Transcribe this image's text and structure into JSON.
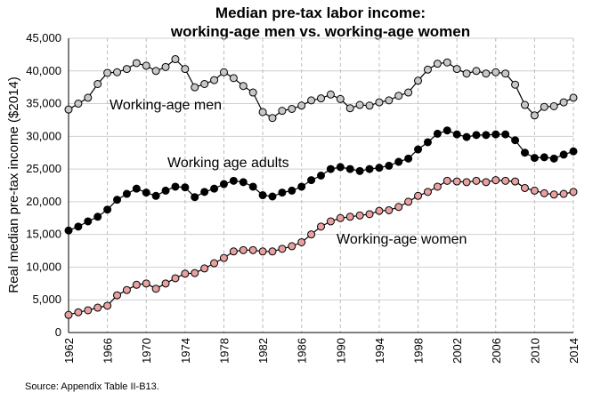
{
  "chart_data": {
    "type": "line",
    "title": [
      "Median pre-tax labor income:",
      "working-age men vs. working-age women"
    ],
    "ylabel": "Real median pre-tax income ($2014)",
    "xlabel": "",
    "ylim": [
      0,
      45000
    ],
    "xlim": [
      1962,
      2014
    ],
    "y_ticks": [
      "0",
      "5,000",
      "10,000",
      "15,000",
      "20,000",
      "25,000",
      "30,000",
      "35,000",
      "40,000",
      "45,000"
    ],
    "x_ticks": [
      "1962",
      "1966",
      "1970",
      "1974",
      "1978",
      "1982",
      "1986",
      "1990",
      "1994",
      "1998",
      "2002",
      "2006",
      "2010",
      "2014"
    ],
    "grid": "dashed vertical every 4 years, solid horizontal every 5,000",
    "x": [
      1962,
      1963,
      1964,
      1965,
      1966,
      1967,
      1968,
      1969,
      1970,
      1971,
      1972,
      1973,
      1974,
      1975,
      1976,
      1977,
      1978,
      1979,
      1980,
      1981,
      1982,
      1983,
      1984,
      1985,
      1986,
      1987,
      1988,
      1989,
      1990,
      1991,
      1992,
      1993,
      1994,
      1995,
      1996,
      1997,
      1998,
      1999,
      2000,
      2001,
      2002,
      2003,
      2004,
      2005,
      2006,
      2007,
      2008,
      2009,
      2010,
      2011,
      2012,
      2013,
      2014
    ],
    "series": [
      {
        "name": "Working-age men",
        "color": "#c8c8c8",
        "values": [
          34100,
          35000,
          35900,
          38000,
          39700,
          39800,
          40300,
          41200,
          40800,
          40000,
          40600,
          41800,
          40300,
          37500,
          38000,
          38600,
          39800,
          38900,
          37700,
          36700,
          33700,
          32800,
          33900,
          34200,
          34700,
          35500,
          35800,
          36400,
          35700,
          34300,
          34800,
          34700,
          35200,
          35500,
          36200,
          36700,
          38500,
          40200,
          41100,
          41300,
          40300,
          39600,
          40000,
          39600,
          39800,
          39600,
          37900,
          34800,
          33200,
          34500,
          34600,
          35200,
          35900
        ]
      },
      {
        "name": "Working age adults",
        "color": "#000000",
        "values": [
          15600,
          16200,
          17000,
          17700,
          18800,
          20300,
          21200,
          22000,
          21400,
          20900,
          21700,
          22300,
          22200,
          20700,
          21500,
          22000,
          22700,
          23200,
          23000,
          22300,
          21000,
          20800,
          21400,
          21700,
          22300,
          23300,
          24000,
          25000,
          25300,
          25000,
          24700,
          25000,
          25200,
          25500,
          26100,
          26600,
          28000,
          29100,
          30400,
          30900,
          30300,
          29900,
          30200,
          30200,
          30300,
          30300,
          29400,
          27500,
          26700,
          26800,
          26600,
          27200,
          27700
        ]
      },
      {
        "name": "Working-age women",
        "color": "#e8a0a0",
        "values": [
          2700,
          3100,
          3400,
          3800,
          4100,
          5700,
          6500,
          7300,
          7500,
          6700,
          7500,
          8300,
          9000,
          9100,
          9800,
          10600,
          11400,
          12400,
          12600,
          12600,
          12400,
          12400,
          12800,
          13200,
          13800,
          15000,
          16200,
          17000,
          17500,
          17700,
          17900,
          18100,
          18600,
          18700,
          19200,
          20000,
          20900,
          21500,
          22300,
          23200,
          23100,
          23000,
          23200,
          23000,
          23300,
          23200,
          23100,
          22100,
          21700,
          21300,
          21100,
          21200,
          21500
        ]
      }
    ],
    "source": "Source: Appendix Table II-B13."
  }
}
